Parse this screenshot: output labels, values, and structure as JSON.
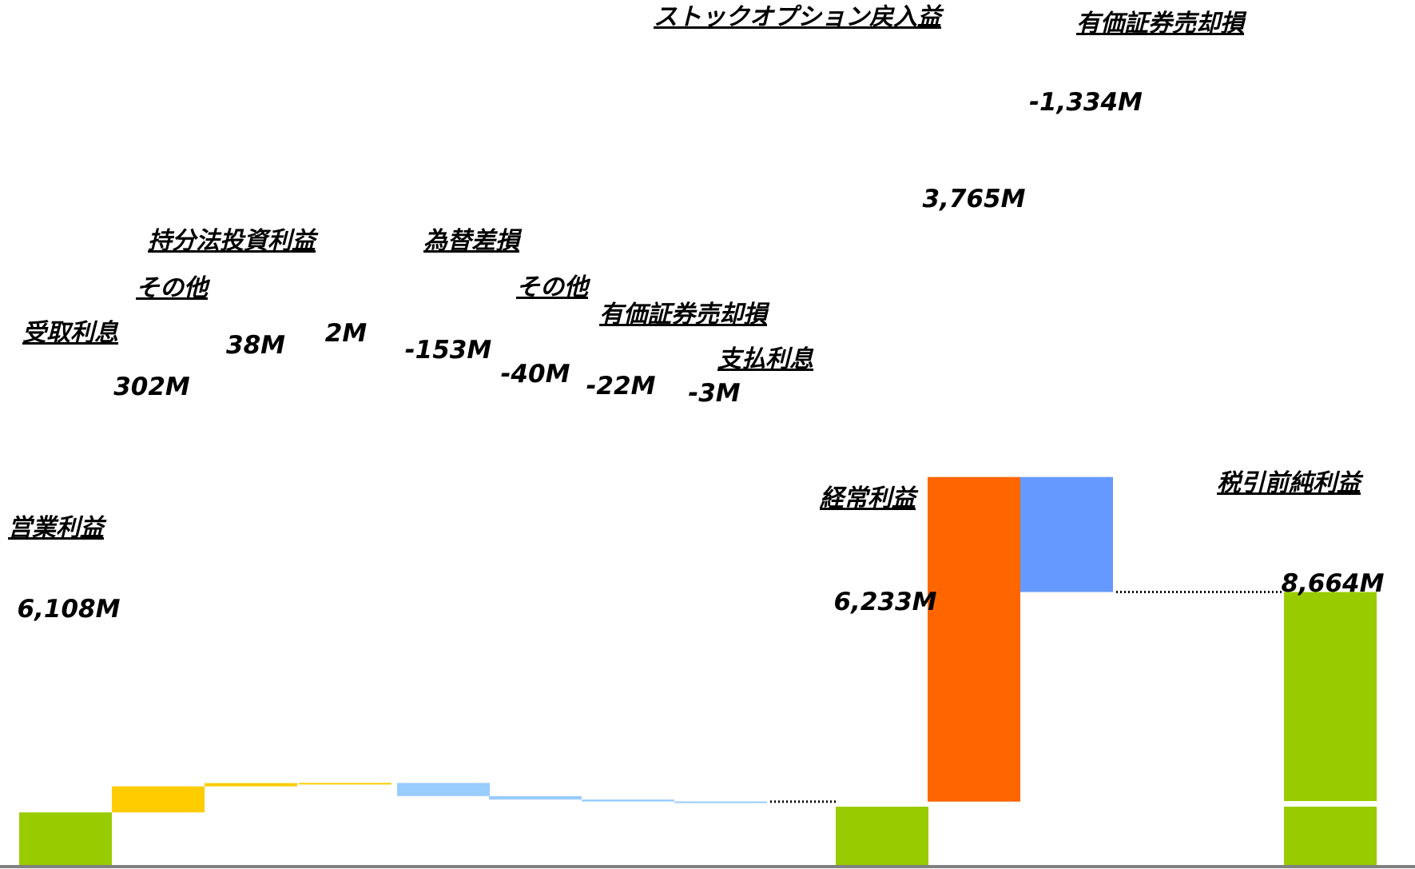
{
  "chart_data": {
    "type": "bar",
    "subtype": "waterfall",
    "unit": "M",
    "y_axis_break": true,
    "categories": [
      "営業利益",
      "受取利息",
      "その他",
      "持分法投資利益",
      "為替差損",
      "その他",
      "有価証券売却損",
      "支払利息",
      "経常利益",
      "ストックオプション戻入益",
      "有価証券売却損",
      "税引前純利益"
    ],
    "values": [
      6108,
      302,
      38,
      2,
      -153,
      -40,
      -22,
      -3,
      6233,
      3765,
      -1334,
      8664
    ],
    "value_labels": [
      "6,108M",
      "302M",
      "38M",
      "2M",
      "-153M",
      "-40M",
      "-22M",
      "-3M",
      "6,233M",
      "3,765M",
      "-1,334M",
      "8,664M"
    ],
    "bar_kind": [
      "total",
      "increase",
      "increase",
      "increase",
      "decrease",
      "decrease",
      "decrease",
      "decrease",
      "total",
      "increase",
      "decrease",
      "total"
    ],
    "colors": {
      "total": "#99cc00",
      "increase": "#ffcc00",
      "decrease": "#99ccff",
      "special_increase": "#ff6600",
      "special_decrease": "#6699ff",
      "axis": "#808080",
      "connector": "#000000"
    },
    "bar_colors": [
      "#99cc00",
      "#ffcc00",
      "#ffcc00",
      "#ffcc00",
      "#99ccff",
      "#99ccff",
      "#99ccff",
      "#99ccff",
      "#99cc00",
      "#ff6600",
      "#6699ff",
      "#99cc00"
    ],
    "legend": "none",
    "grid": false,
    "title": "",
    "xlabel": "",
    "ylabel": ""
  }
}
